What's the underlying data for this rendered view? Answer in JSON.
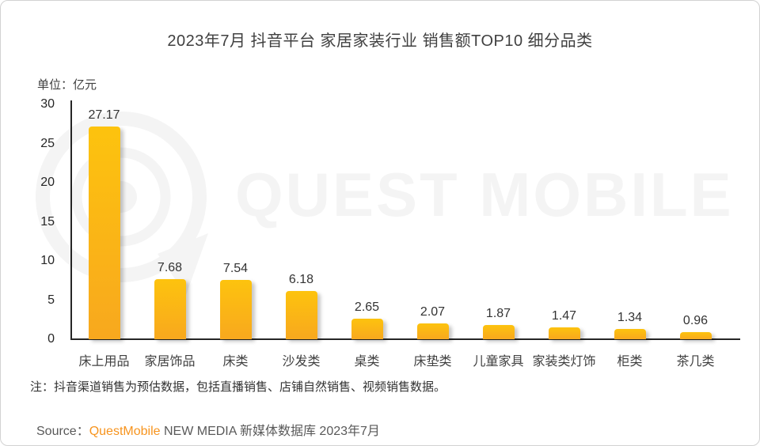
{
  "chart_data": {
    "type": "bar",
    "title": "2023年7月 抖音平台 家居家装行业 销售额TOP10 细分品类",
    "unit_label": "单位：亿元",
    "ylabel": "亿元",
    "categories": [
      "床上用品",
      "家居饰品",
      "床类",
      "沙发类",
      "桌类",
      "床垫类",
      "儿童家具",
      "家装类灯饰",
      "柜类",
      "茶几类"
    ],
    "values": [
      27.17,
      7.68,
      7.54,
      6.18,
      2.65,
      2.07,
      1.87,
      1.47,
      1.34,
      0.96
    ],
    "ylim": [
      0,
      30
    ],
    "yticks": [
      0,
      5,
      10,
      15,
      20,
      25,
      30
    ],
    "grid": false,
    "legend": false,
    "bar_color_top": "#FDC30E",
    "bar_color_bottom": "#F8A81E"
  },
  "watermark": {
    "text": "QUEST MOBILE"
  },
  "note": "注：抖音渠道销售为预估数据，包括直播销售、店铺自然销售、视频销售数据。",
  "source": {
    "prefix": "Source：",
    "brand": "QuestMobile",
    "suffix": " NEW MEDIA 新媒体数据库 2023年7月",
    "brand_color": "#F7941E"
  }
}
